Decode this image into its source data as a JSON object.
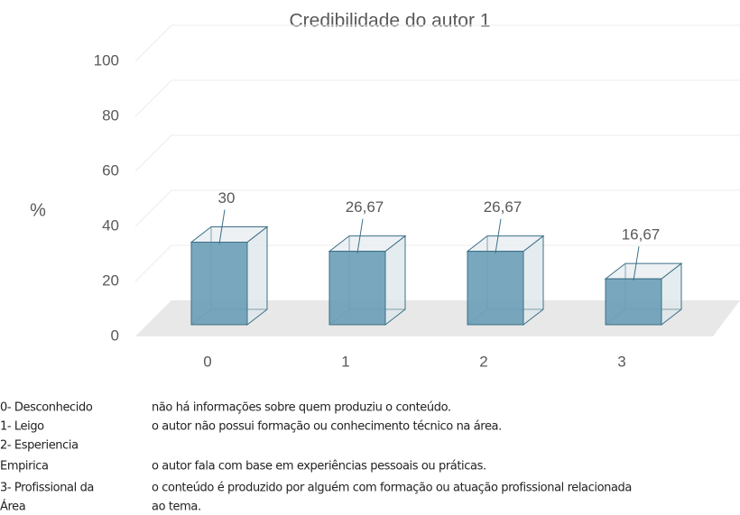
{
  "chart_data": {
    "type": "bar3d",
    "title": "Credibilidade do autor 1",
    "y_label": "%",
    "categories": [
      "0",
      "1",
      "2",
      "3"
    ],
    "values": [
      30,
      26.67,
      26.67,
      16.67
    ],
    "value_labels": [
      "30",
      "26,67",
      "26,67",
      "16,67"
    ],
    "color": "#6a9fb7",
    "ylim": [
      0,
      100
    ],
    "yticks": [
      0,
      20,
      40,
      60,
      80,
      100
    ],
    "grid": true,
    "legend_notes": [
      {
        "key": [
          "0- Desconhecido"
        ],
        "description": [
          "não há informações sobre quem produziu o conteúdo."
        ]
      },
      {
        "key": [
          "1- Leigo"
        ],
        "description": [
          "o autor não possui formação ou conhecimento técnico na área."
        ]
      },
      {
        "key": [
          "2- Esperiencia",
          "Empirica"
        ],
        "description": [
          "o autor fala com base em experiências pessoais ou práticas."
        ]
      },
      {
        "key": [
          "3- Profissional da",
          "Área"
        ],
        "description": [
          "o conteúdo é produzido por alguém com formação ou atuação profissional relacionada",
          "ao tema."
        ]
      }
    ]
  }
}
